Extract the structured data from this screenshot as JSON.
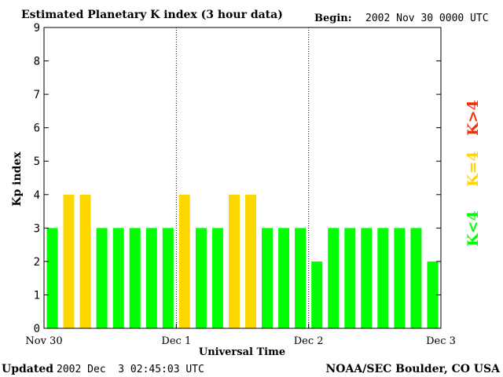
{
  "title": "Estimated Planetary K index (3 hour data)",
  "begin_label": "Begin:",
  "begin_value": "2002 Nov 30 0000 UTC",
  "footer": {
    "updated_label": "Updated",
    "updated_value": "2002 Dec  3 02:45:03 UTC",
    "source": "NOAA/SEC Boulder, CO USA"
  },
  "legend": {
    "low": "K<4",
    "mid": "K=4",
    "high": "K>4"
  },
  "colors": {
    "low": "#00ff00",
    "mid": "#ffd700",
    "high": "#ff2a00",
    "frame": "#000000"
  },
  "chart_data": {
    "type": "bar",
    "title": "Estimated Planetary K index (3 hour data)",
    "xlabel": "Universal Time",
    "ylabel": "Kp index",
    "ylim": [
      0,
      9
    ],
    "yticks": [
      0,
      1,
      2,
      3,
      4,
      5,
      6,
      7,
      8,
      9
    ],
    "day_labels": [
      "Nov 30",
      "Dec 1",
      "Dec 2",
      "Dec 3"
    ],
    "bins_per_day": 8,
    "values": [
      3,
      4,
      4,
      3,
      3,
      3,
      3,
      3,
      4,
      3,
      3,
      4,
      4,
      3,
      3,
      3,
      2,
      3,
      3,
      3,
      3,
      3,
      3,
      2
    ]
  }
}
